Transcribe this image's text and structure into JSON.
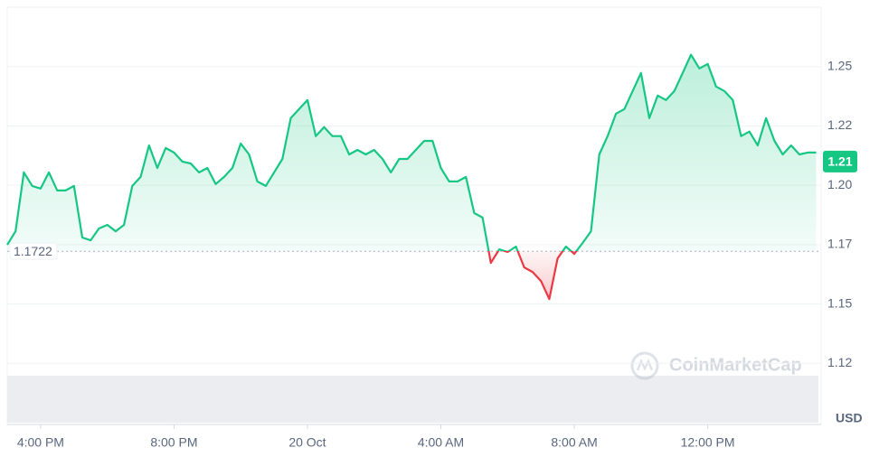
{
  "chart_data": {
    "type": "line",
    "x": [
      15,
      15.25,
      15.5,
      15.75,
      16,
      16.25,
      16.5,
      16.75,
      17,
      17.25,
      17.5,
      17.75,
      18,
      18.25,
      18.5,
      18.75,
      19,
      19.25,
      19.5,
      19.75,
      20,
      20.25,
      20.5,
      20.75,
      21,
      21.25,
      21.5,
      21.75,
      22,
      22.25,
      22.5,
      22.75,
      23,
      23.25,
      23.5,
      23.75,
      24,
      24.25,
      24.5,
      24.75,
      25,
      25.25,
      25.5,
      25.75,
      26,
      26.25,
      26.5,
      26.75,
      27,
      27.25,
      27.5,
      27.75,
      28,
      28.25,
      28.5,
      28.75,
      29,
      29.25,
      29.5,
      29.75,
      30,
      30.25,
      30.5,
      30.75,
      31,
      31.25,
      31.5,
      31.75,
      32,
      32.25,
      32.5,
      32.75,
      33,
      33.25,
      33.5,
      33.75,
      34,
      34.25,
      34.5,
      34.75,
      35,
      35.25,
      35.5,
      35.75,
      36,
      36.25,
      36.5,
      36.75,
      37,
      37.25,
      37.5,
      37.75,
      38,
      38.25,
      38.5,
      38.75,
      39,
      39.25
    ],
    "values": [
      1.1749,
      1.1806,
      1.2054,
      1.1997,
      1.1986,
      1.2054,
      1.1978,
      1.1978,
      1.1997,
      1.178,
      1.1768,
      1.1818,
      1.1833,
      1.1806,
      1.1833,
      1.1997,
      1.2035,
      1.2168,
      1.2073,
      1.2157,
      1.2138,
      1.21,
      1.2092,
      1.2054,
      1.2073,
      1.2005,
      1.2035,
      1.2073,
      1.2176,
      1.213,
      1.2016,
      1.1997,
      1.2054,
      1.2111,
      1.2283,
      1.2321,
      1.2359,
      1.2207,
      1.2245,
      1.2207,
      1.2207,
      1.213,
      1.2149,
      1.213,
      1.2149,
      1.2111,
      1.2054,
      1.2111,
      1.2111,
      1.2149,
      1.2187,
      1.2187,
      1.2073,
      1.2016,
      1.2016,
      1.2035,
      1.1883,
      1.1864,
      1.1673,
      1.173,
      1.1719,
      1.1742,
      1.1654,
      1.1635,
      1.1597,
      1.1521,
      1.1692,
      1.1742,
      1.1711,
      1.1757,
      1.1806,
      1.213,
      1.2207,
      1.2302,
      1.2321,
      1.2397,
      1.2473,
      1.2283,
      1.2378,
      1.2359,
      1.2397,
      1.2473,
      1.255,
      1.2492,
      1.2511,
      1.2416,
      1.2397,
      1.2359,
      1.2207,
      1.2226,
      1.2168,
      1.2283,
      1.2187,
      1.213,
      1.2168,
      1.213,
      1.2138,
      1.2138
    ],
    "xlim": [
      15,
      39.4
    ],
    "xticks": [
      {
        "value": 16,
        "label": "4:00 PM"
      },
      {
        "value": 20,
        "label": "8:00 PM"
      },
      {
        "value": 24,
        "label": "20 Oct"
      },
      {
        "value": 28,
        "label": "4:00 AM"
      },
      {
        "value": 32,
        "label": "8:00 AM"
      },
      {
        "value": 36,
        "label": "12:00 PM"
      }
    ],
    "ylim": [
      1.1,
      1.275
    ],
    "yticks": [
      {
        "value": 1.125,
        "label": "1.12"
      },
      1.15,
      {
        "value": 1.175,
        "label": "1.17"
      },
      {
        "value": 1.2,
        "label": "1.20"
      },
      {
        "value": 1.225,
        "label": "1.22"
      },
      1.25
    ],
    "baseline": 1.1722,
    "last_price": 1.21,
    "currency": "USD",
    "watermark": "CoinMarketCap",
    "up_color": "#16c784",
    "down_color": "#ea3943",
    "grid": true
  }
}
